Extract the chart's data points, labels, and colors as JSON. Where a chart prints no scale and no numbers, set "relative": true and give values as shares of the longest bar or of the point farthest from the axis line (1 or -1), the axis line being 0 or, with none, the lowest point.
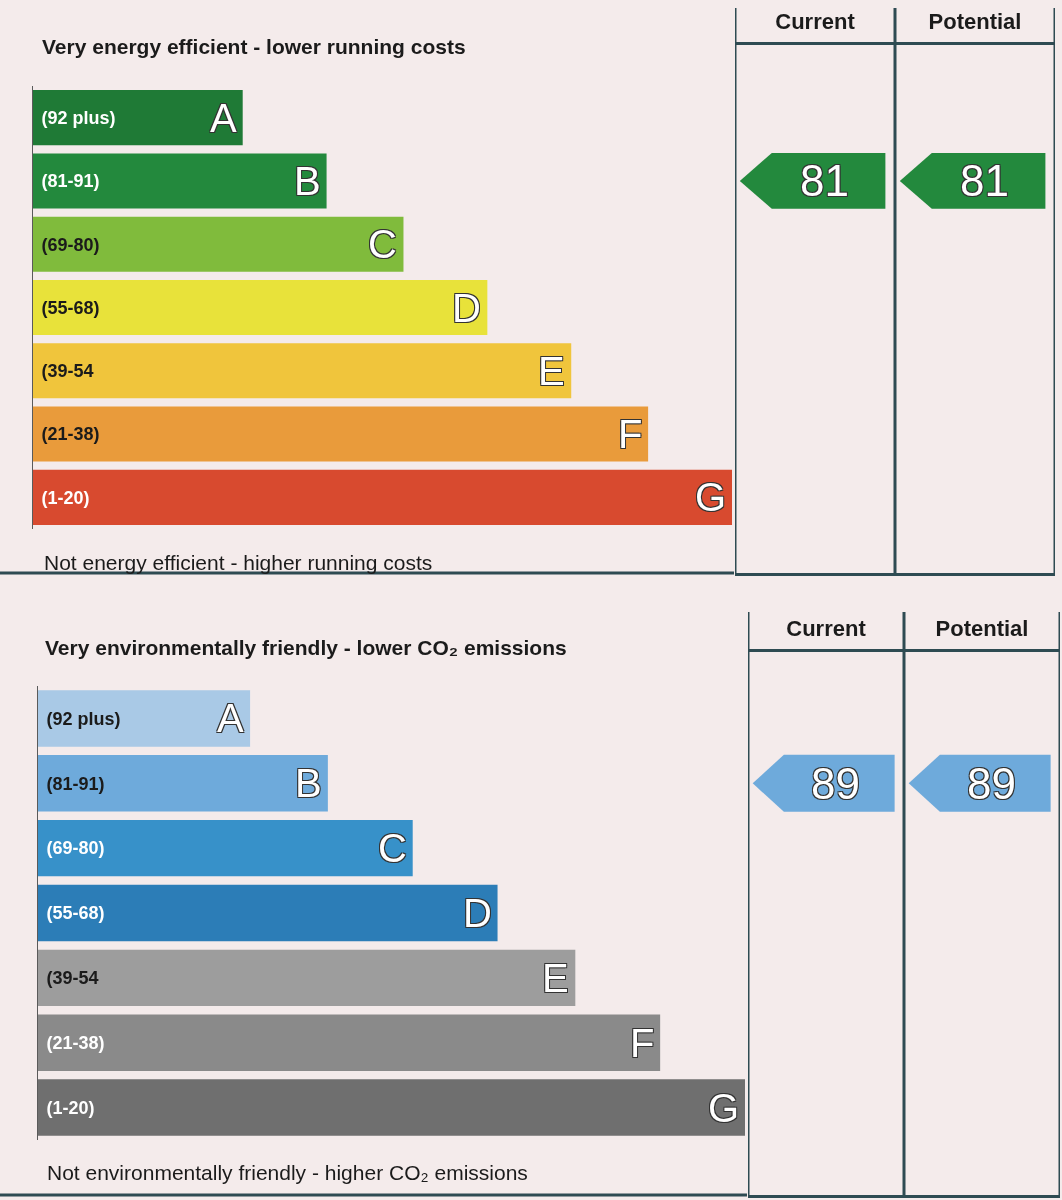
{
  "chart_data": [
    {
      "type": "bar",
      "orientation": "horizontal",
      "relative": true,
      "title": "Very energy efficient - lower running costs",
      "annotations": [
        "Not energy efficient - higher running costs",
        {
          "text": "A",
          "x": 0.3,
          "y": "(92 plus)"
        },
        {
          "text": "B",
          "x": 0.42,
          "y": "(81-91)"
        },
        {
          "text": "C",
          "x": 0.53,
          "y": "(69-80)"
        },
        {
          "text": "D",
          "x": 0.65,
          "y": "(55-68)"
        },
        {
          "text": "E",
          "x": 0.77,
          "y": "(39-54"
        },
        {
          "text": "F",
          "x": 0.88,
          "y": "(21-38)"
        },
        {
          "text": "G",
          "x": 1,
          "y": "(1-20)"
        }
      ],
      "categories": [
        "(92 plus)",
        "(81-91)",
        "(69-80)",
        "(55-68)",
        "(39-54",
        "(21-38)",
        "(1-20)"
      ],
      "values": [
        0.3,
        0.42,
        0.53,
        0.65,
        0.77,
        0.88,
        1
      ],
      "colors": [
        "#1f7a36",
        "#23893d",
        "#80bb3c",
        "#e8e23a",
        "#f0c53c",
        "#e99b3b",
        "#d84a2f"
      ],
      "tick_labels": "y"
    },
    {
      "type": "other",
      "categories": [
        "Current",
        "Potential"
      ],
      "annotations": [
        {
          "text": "81",
          "x": "Current",
          "y": "(81-91)"
        },
        {
          "text": "81",
          "x": "Potential",
          "y": "(81-91)"
        }
      ]
    },
    {
      "type": "bar",
      "orientation": "horizontal",
      "relative": true,
      "title": "Very environmentally friendly - lower CO₂ emissions",
      "annotations": [
        "Not environmentally friendly - higher CO₂ emissions",
        {
          "text": "A",
          "x": 0.3,
          "y": "(92 plus)"
        },
        {
          "text": "B",
          "x": 0.41,
          "y": "(81-91)"
        },
        {
          "text": "C",
          "x": 0.53,
          "y": "(69-80)"
        },
        {
          "text": "D",
          "x": 0.65,
          "y": "(55-68)"
        },
        {
          "text": "E",
          "x": 0.76,
          "y": "(39-54"
        },
        {
          "text": "F",
          "x": 0.88,
          "y": "(21-38)"
        },
        {
          "text": "G",
          "x": 1,
          "y": "(1-20)"
        }
      ],
      "categories": [
        "(92 plus)",
        "(81-91)",
        "(69-80)",
        "(55-68)",
        "(39-54",
        "(21-38)",
        "(1-20)"
      ],
      "values": [
        0.3,
        0.41,
        0.53,
        0.65,
        0.76,
        0.88,
        1
      ],
      "colors": [
        "#a9c9e6",
        "#6eaadb",
        "#3791c9",
        "#2c7db7",
        "#9d9d9d",
        "#8a8a8a",
        "#6f6f6f"
      ],
      "tick_labels": "y"
    },
    {
      "type": "other",
      "categories": [
        "Current",
        "Potential"
      ],
      "annotations": [
        {
          "text": "89",
          "x": "Current",
          "y": "(81-91)"
        },
        {
          "text": "89",
          "x": "Potential",
          "y": "(81-91)"
        }
      ]
    }
  ]
}
